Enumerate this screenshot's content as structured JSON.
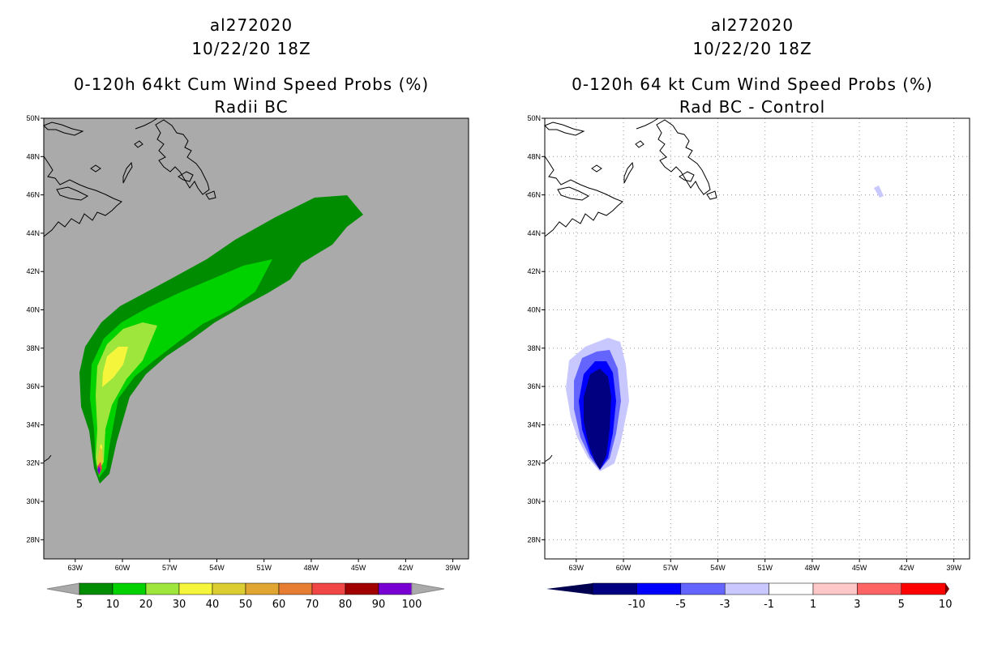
{
  "chart_data": [
    {
      "type": "heatmap",
      "storm_id": "al272020",
      "date": "10/22/20 18Z",
      "title": "0-120h 64kt Cum Wind Speed Probs (%)",
      "subtitle": "Radii BC",
      "x_ticks": [
        "63W",
        "60W",
        "57W",
        "54W",
        "51W",
        "48W",
        "45W",
        "42W",
        "39W"
      ],
      "y_ticks": [
        "28N",
        "30N",
        "32N",
        "34N",
        "36N",
        "38N",
        "40N",
        "42N",
        "44N",
        "46N",
        "48N",
        "50N"
      ],
      "lon_range": [
        -65,
        -38
      ],
      "lat_range": [
        27,
        50
      ],
      "background_color": "#aaaaaa",
      "grid": false,
      "colorbar_labels": [
        "5",
        "10",
        "20",
        "30",
        "40",
        "50",
        "60",
        "70",
        "80",
        "90",
        "100"
      ],
      "colorbar_colors": [
        "#008c00",
        "#00d200",
        "#9fe63c",
        "#f5f53c",
        "#dccd32",
        "#e1a532",
        "#e67d32",
        "#f04646",
        "#a00000",
        "#7800d2"
      ],
      "field_summary": "Probability swath from ~31.5N 61.5W curving NE to ~45N 44W; peak 90-100% near 31.7N 61.6W"
    },
    {
      "type": "heatmap",
      "storm_id": "al272020",
      "date": "10/22/20 18Z",
      "title": "0-120h 64 kt Cum Wind Speed Probs (%)",
      "subtitle": "Rad BC - Control",
      "x_ticks": [
        "63W",
        "60W",
        "57W",
        "54W",
        "51W",
        "48W",
        "45W",
        "42W",
        "39W"
      ],
      "y_ticks": [
        "28N",
        "30N",
        "32N",
        "34N",
        "36N",
        "38N",
        "40N",
        "42N",
        "44N",
        "46N",
        "48N",
        "50N"
      ],
      "lon_range": [
        -65,
        -38
      ],
      "lat_range": [
        27,
        50
      ],
      "background_color": "#ffffff",
      "grid": true,
      "colorbar_labels": [
        "-10",
        "-5",
        "-3",
        "-1",
        "1",
        "3",
        "5",
        "10"
      ],
      "colorbar_colors": [
        "#000080",
        "#0000ff",
        "#6464ff",
        "#c8c8ff",
        "#ffffff",
        "#ffc8c8",
        "#ff6464",
        "#ff0000"
      ],
      "colorbar_end_colors": [
        "#000050",
        "#780000"
      ],
      "field_summary": "Negative differences (< -10) centered ~34.5N 61.5W; small weak negative blob near 46N 44W"
    }
  ]
}
